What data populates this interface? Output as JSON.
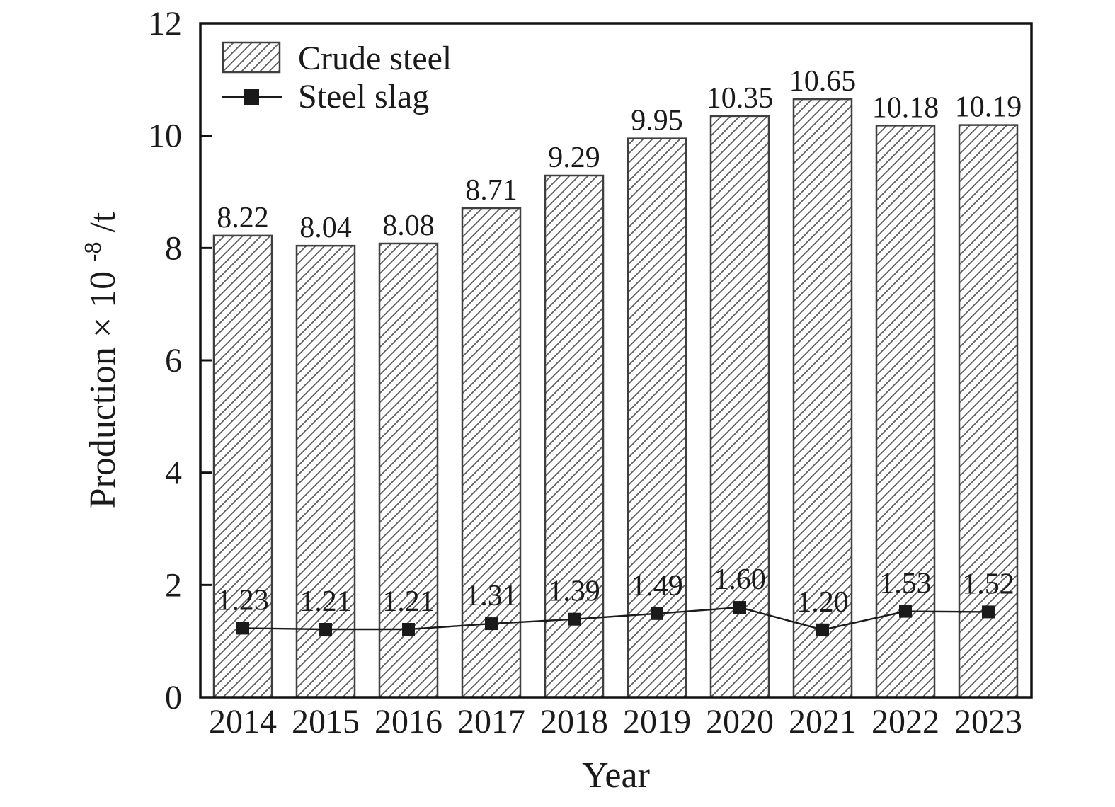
{
  "figure": {
    "background": "#ffffff",
    "text_color": "#1a1a1a",
    "frame_color": "#111111",
    "bar_border_color": "#3f3f3f",
    "hatch_line_color": "#5a5a5a",
    "line_color": "#1a1a1a",
    "marker_color": "#1a1a1a"
  },
  "legend": {
    "entries": [
      {
        "label": "Crude steel",
        "swatch": "hatched-rect"
      },
      {
        "label": "Steel slag",
        "swatch": "line-square-marker"
      }
    ],
    "position": "top-left"
  },
  "chart_data": {
    "type": "bar",
    "title": "",
    "xlabel": "Year",
    "ylabel": "Production × 10⁻⁸/t",
    "ylabel_parts": {
      "base": "Production × 10",
      "sup": "-8",
      "rest": "/t"
    },
    "categories": [
      "2014",
      "2015",
      "2016",
      "2017",
      "2018",
      "2019",
      "2020",
      "2021",
      "2022",
      "2023"
    ],
    "series": [
      {
        "name": "Crude steel",
        "type": "bar",
        "style": "diagonal-hatch",
        "values": [
          8.22,
          8.04,
          8.08,
          8.71,
          9.29,
          9.95,
          10.35,
          10.65,
          10.18,
          10.19
        ],
        "value_labels": [
          "8.22",
          "8.04",
          "8.08",
          "8.71",
          "9.29",
          "9.95",
          "10.35",
          "10.65",
          "10.18",
          "10.19"
        ]
      },
      {
        "name": "Steel slag",
        "type": "line",
        "style": "solid-line-square-markers",
        "values": [
          1.23,
          1.21,
          1.21,
          1.31,
          1.39,
          1.49,
          1.6,
          1.2,
          1.53,
          1.52
        ],
        "value_labels": [
          "1.23",
          "1.21",
          "1.21",
          "1.31",
          "1.39",
          "1.49",
          "1.60",
          "1.20",
          "1.53",
          "1.52"
        ]
      }
    ],
    "ylim": [
      0,
      12
    ],
    "yticks": [
      0,
      2,
      4,
      6,
      8,
      10,
      12
    ],
    "ytick_labels": [
      "0",
      "2",
      "4",
      "6",
      "8",
      "10",
      "12"
    ],
    "grid": false,
    "legend_position": "top-left"
  }
}
